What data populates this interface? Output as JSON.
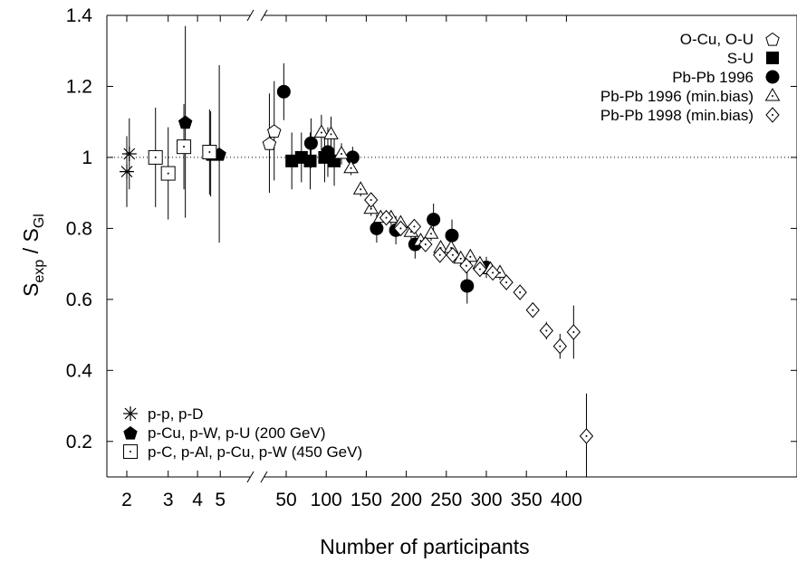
{
  "chart_data": {
    "type": "scatter",
    "title": "",
    "xlabel": "Number of participants",
    "ylabel": {
      "main": "S",
      "sub1": "exp",
      "sep": " / S",
      "sub2": "Gl"
    },
    "ylim": [
      0.1,
      1.4
    ],
    "y_ticks": [
      "0.2",
      "0.4",
      "0.6",
      "0.8",
      "1",
      "1.2",
      "1.4"
    ],
    "reference_line": {
      "y": 1.0,
      "style": "dotted"
    },
    "x_axis_broken": true,
    "x_axis_segments": [
      {
        "scale": "log",
        "domain": [
          1.8,
          6.0
        ],
        "ticks": [
          2,
          3,
          4,
          5
        ],
        "tick_labels": [
          "2",
          "3",
          "4",
          "5"
        ]
      },
      {
        "scale": "linear",
        "domain": [
          25,
          425
        ],
        "ticks": [
          50,
          100,
          150,
          200,
          250,
          300,
          350,
          400
        ],
        "tick_labels": [
          "50",
          "100",
          "150",
          "200",
          "250",
          "300",
          "350",
          "400"
        ]
      }
    ],
    "legend_top_right": [
      "O-Cu, O-U",
      "S-U",
      "Pb-Pb 1996",
      "Pb-Pb 1996 (min.bias)",
      "Pb-Pb 1998 (min.bias)"
    ],
    "legend_bottom_left": [
      "p-p, p-D",
      "p-Cu, p-W, p-U (200 GeV)",
      "p-C, p-Al, p-Cu, p-W (450 GeV)"
    ],
    "series": [
      {
        "name": "p-p, p-D",
        "marker": "star",
        "points": [
          {
            "x": 2.0,
            "y": 0.96,
            "err": 0.1
          },
          {
            "x": 2.05,
            "y": 1.01,
            "err": 0.1
          }
        ]
      },
      {
        "name": "p-Cu, p-W, p-U (200 GeV)",
        "marker": "pentagon-filled",
        "points": [
          {
            "x": 3.55,
            "y": 1.1,
            "err": 0.27
          },
          {
            "x": 4.55,
            "y": 1.01,
            "err": 0.12
          },
          {
            "x": 4.95,
            "y": 1.01,
            "err": 0.25
          }
        ]
      },
      {
        "name": "p-C, p-Al, p-Cu, p-W (450 GeV)",
        "marker": "square-open-dot",
        "points": [
          {
            "x": 2.65,
            "y": 1.0,
            "err": 0.14
          },
          {
            "x": 3.0,
            "y": 0.955,
            "err": 0.13
          },
          {
            "x": 3.5,
            "y": 1.03,
            "err": 0.12
          },
          {
            "x": 4.5,
            "y": 1.015,
            "err": 0.12
          }
        ]
      },
      {
        "name": "O-Cu, O-U",
        "marker": "pentagon-open",
        "points": [
          {
            "x": 29,
            "y": 1.04,
            "err": 0.14
          },
          {
            "x": 35,
            "y": 1.075,
            "err": 0.14
          }
        ]
      },
      {
        "name": "S-U",
        "marker": "square-filled",
        "points": [
          {
            "x": 57,
            "y": 0.99,
            "err": 0.08
          },
          {
            "x": 69,
            "y": 1.0,
            "err": 0.07
          },
          {
            "x": 80,
            "y": 0.99,
            "err": 0.08
          },
          {
            "x": 98,
            "y": 1.0,
            "err": 0.07
          },
          {
            "x": 110,
            "y": 0.99,
            "err": 0.07
          }
        ]
      },
      {
        "name": "Pb-Pb 1996",
        "marker": "circle-filled",
        "points": [
          {
            "x": 47,
            "y": 1.185,
            "err": 0.08
          },
          {
            "x": 81,
            "y": 1.04,
            "err": 0.07
          },
          {
            "x": 102,
            "y": 1.015,
            "err": 0.07
          },
          {
            "x": 133,
            "y": 1.0,
            "err": 0.03
          },
          {
            "x": 163,
            "y": 0.8,
            "err": 0.04
          },
          {
            "x": 187,
            "y": 0.795,
            "err": 0.04
          },
          {
            "x": 211,
            "y": 0.755,
            "err": 0.04
          },
          {
            "x": 234,
            "y": 0.825,
            "err": 0.045
          },
          {
            "x": 257,
            "y": 0.78,
            "err": 0.045
          },
          {
            "x": 276,
            "y": 0.638,
            "err": 0.05
          },
          {
            "x": 300,
            "y": 0.69,
            "err": 0.03
          }
        ]
      },
      {
        "name": "Pb-Pb 1996 (min.bias)",
        "marker": "triangle-open-dot",
        "points": [
          {
            "x": 94,
            "y": 1.07,
            "err": 0.05
          },
          {
            "x": 106,
            "y": 1.065,
            "err": 0.05
          },
          {
            "x": 119,
            "y": 1.01,
            "err": 0.03
          },
          {
            "x": 131,
            "y": 0.97,
            "err": 0.02
          },
          {
            "x": 143,
            "y": 0.91,
            "err": 0.02
          },
          {
            "x": 156,
            "y": 0.855,
            "err": 0.02
          },
          {
            "x": 168,
            "y": 0.83,
            "err": 0.02
          },
          {
            "x": 181,
            "y": 0.83,
            "err": 0.02
          },
          {
            "x": 193,
            "y": 0.815,
            "err": 0.02
          },
          {
            "x": 206,
            "y": 0.79,
            "err": 0.02
          },
          {
            "x": 218,
            "y": 0.765,
            "err": 0.02
          },
          {
            "x": 231,
            "y": 0.785,
            "err": 0.02
          },
          {
            "x": 243,
            "y": 0.745,
            "err": 0.02
          },
          {
            "x": 256,
            "y": 0.745,
            "err": 0.02
          },
          {
            "x": 268,
            "y": 0.715,
            "err": 0.02
          },
          {
            "x": 280,
            "y": 0.72,
            "err": 0.02
          },
          {
            "x": 292,
            "y": 0.7,
            "err": 0.02
          },
          {
            "x": 305,
            "y": 0.685,
            "err": 0.02
          },
          {
            "x": 317,
            "y": 0.675,
            "err": 0.02
          }
        ]
      },
      {
        "name": "Pb-Pb 1998 (min.bias)",
        "marker": "diamond-open-dot",
        "points": [
          {
            "x": 156,
            "y": 0.88,
            "err": 0.02
          },
          {
            "x": 175,
            "y": 0.83,
            "err": 0.02
          },
          {
            "x": 193,
            "y": 0.8,
            "err": 0.02
          },
          {
            "x": 210,
            "y": 0.805,
            "err": 0.02
          },
          {
            "x": 224,
            "y": 0.755,
            "err": 0.02
          },
          {
            "x": 242,
            "y": 0.725,
            "err": 0.02
          },
          {
            "x": 258,
            "y": 0.725,
            "err": 0.02
          },
          {
            "x": 275,
            "y": 0.695,
            "err": 0.02
          },
          {
            "x": 292,
            "y": 0.685,
            "err": 0.02
          },
          {
            "x": 308,
            "y": 0.675,
            "err": 0.02
          },
          {
            "x": 325,
            "y": 0.648,
            "err": 0.02
          },
          {
            "x": 342,
            "y": 0.62,
            "err": 0.02
          },
          {
            "x": 358,
            "y": 0.57,
            "err": 0.02
          },
          {
            "x": 375,
            "y": 0.512,
            "err": 0.025
          },
          {
            "x": 392,
            "y": 0.468,
            "err": 0.035
          },
          {
            "x": 409,
            "y": 0.508,
            "err": 0.075
          },
          {
            "x": 425,
            "y": 0.215,
            "err": 0.12
          }
        ]
      }
    ]
  }
}
